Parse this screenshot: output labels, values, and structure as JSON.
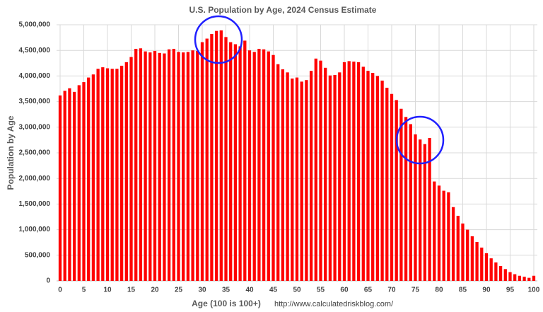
{
  "chart_data": {
    "type": "bar",
    "title": "U.S. Population by Age, 2024 Census Estimate",
    "x_label": "Age (100 is 100+)",
    "y_label": "Population by Age",
    "source": "http://www.calculatedriskblog.com/",
    "color": "#ff0000",
    "x": [
      0,
      1,
      2,
      3,
      4,
      5,
      6,
      7,
      8,
      9,
      10,
      11,
      12,
      13,
      14,
      15,
      16,
      17,
      18,
      19,
      20,
      21,
      22,
      23,
      24,
      25,
      26,
      27,
      28,
      29,
      30,
      31,
      32,
      33,
      34,
      35,
      36,
      37,
      38,
      39,
      40,
      41,
      42,
      43,
      44,
      45,
      46,
      47,
      48,
      49,
      50,
      51,
      52,
      53,
      54,
      55,
      56,
      57,
      58,
      59,
      60,
      61,
      62,
      63,
      64,
      65,
      66,
      67,
      68,
      69,
      70,
      71,
      72,
      73,
      74,
      75,
      76,
      77,
      78,
      79,
      80,
      81,
      82,
      83,
      84,
      85,
      86,
      87,
      88,
      89,
      90,
      91,
      92,
      93,
      94,
      95,
      96,
      97,
      98,
      99,
      100
    ],
    "values": [
      3620000,
      3710000,
      3760000,
      3690000,
      3820000,
      3880000,
      3970000,
      4030000,
      4140000,
      4170000,
      4150000,
      4140000,
      4140000,
      4200000,
      4270000,
      4370000,
      4530000,
      4540000,
      4480000,
      4460000,
      4490000,
      4450000,
      4440000,
      4520000,
      4530000,
      4470000,
      4460000,
      4470000,
      4500000,
      4490000,
      4660000,
      4730000,
      4820000,
      4880000,
      4890000,
      4760000,
      4660000,
      4620000,
      4580000,
      4690000,
      4500000,
      4470000,
      4530000,
      4520000,
      4480000,
      4410000,
      4230000,
      4130000,
      4070000,
      3950000,
      3970000,
      3890000,
      3920000,
      4100000,
      4340000,
      4300000,
      4160000,
      4010000,
      4020000,
      4070000,
      4270000,
      4290000,
      4280000,
      4270000,
      4180000,
      4100000,
      4060000,
      4000000,
      3910000,
      3770000,
      3650000,
      3530000,
      3360000,
      3200000,
      3060000,
      2860000,
      2760000,
      2670000,
      2790000,
      1940000,
      1860000,
      1760000,
      1730000,
      1440000,
      1270000,
      1120000,
      1000000,
      870000,
      760000,
      650000,
      540000,
      440000,
      360000,
      290000,
      230000,
      170000,
      130000,
      100000,
      80000,
      60000,
      100000
    ],
    "xlim": [
      -0.75,
      100.75
    ],
    "xticks": [
      0,
      5,
      10,
      15,
      20,
      25,
      30,
      35,
      40,
      45,
      50,
      55,
      60,
      65,
      70,
      75,
      80,
      85,
      90,
      95,
      100
    ],
    "ylim": [
      0,
      5000000
    ],
    "yticks": [
      0,
      {
        "value": 500000,
        "label": "500,000"
      },
      {
        "value": 1000000,
        "label": "1,000,000"
      },
      {
        "value": 1500000,
        "label": "1,500,000"
      },
      {
        "value": 2000000,
        "label": "2,000,000"
      },
      {
        "value": 2500000,
        "label": "2,500,000"
      },
      {
        "value": 3000000,
        "label": "3,000,000"
      },
      {
        "value": 3500000,
        "label": "3,500,000"
      },
      {
        "value": 4000000,
        "label": "4,000,000"
      },
      {
        "value": 4500000,
        "label": "4,500,000"
      },
      {
        "value": 5000000,
        "label": "5,000,000"
      }
    ],
    "grid": true
  }
}
